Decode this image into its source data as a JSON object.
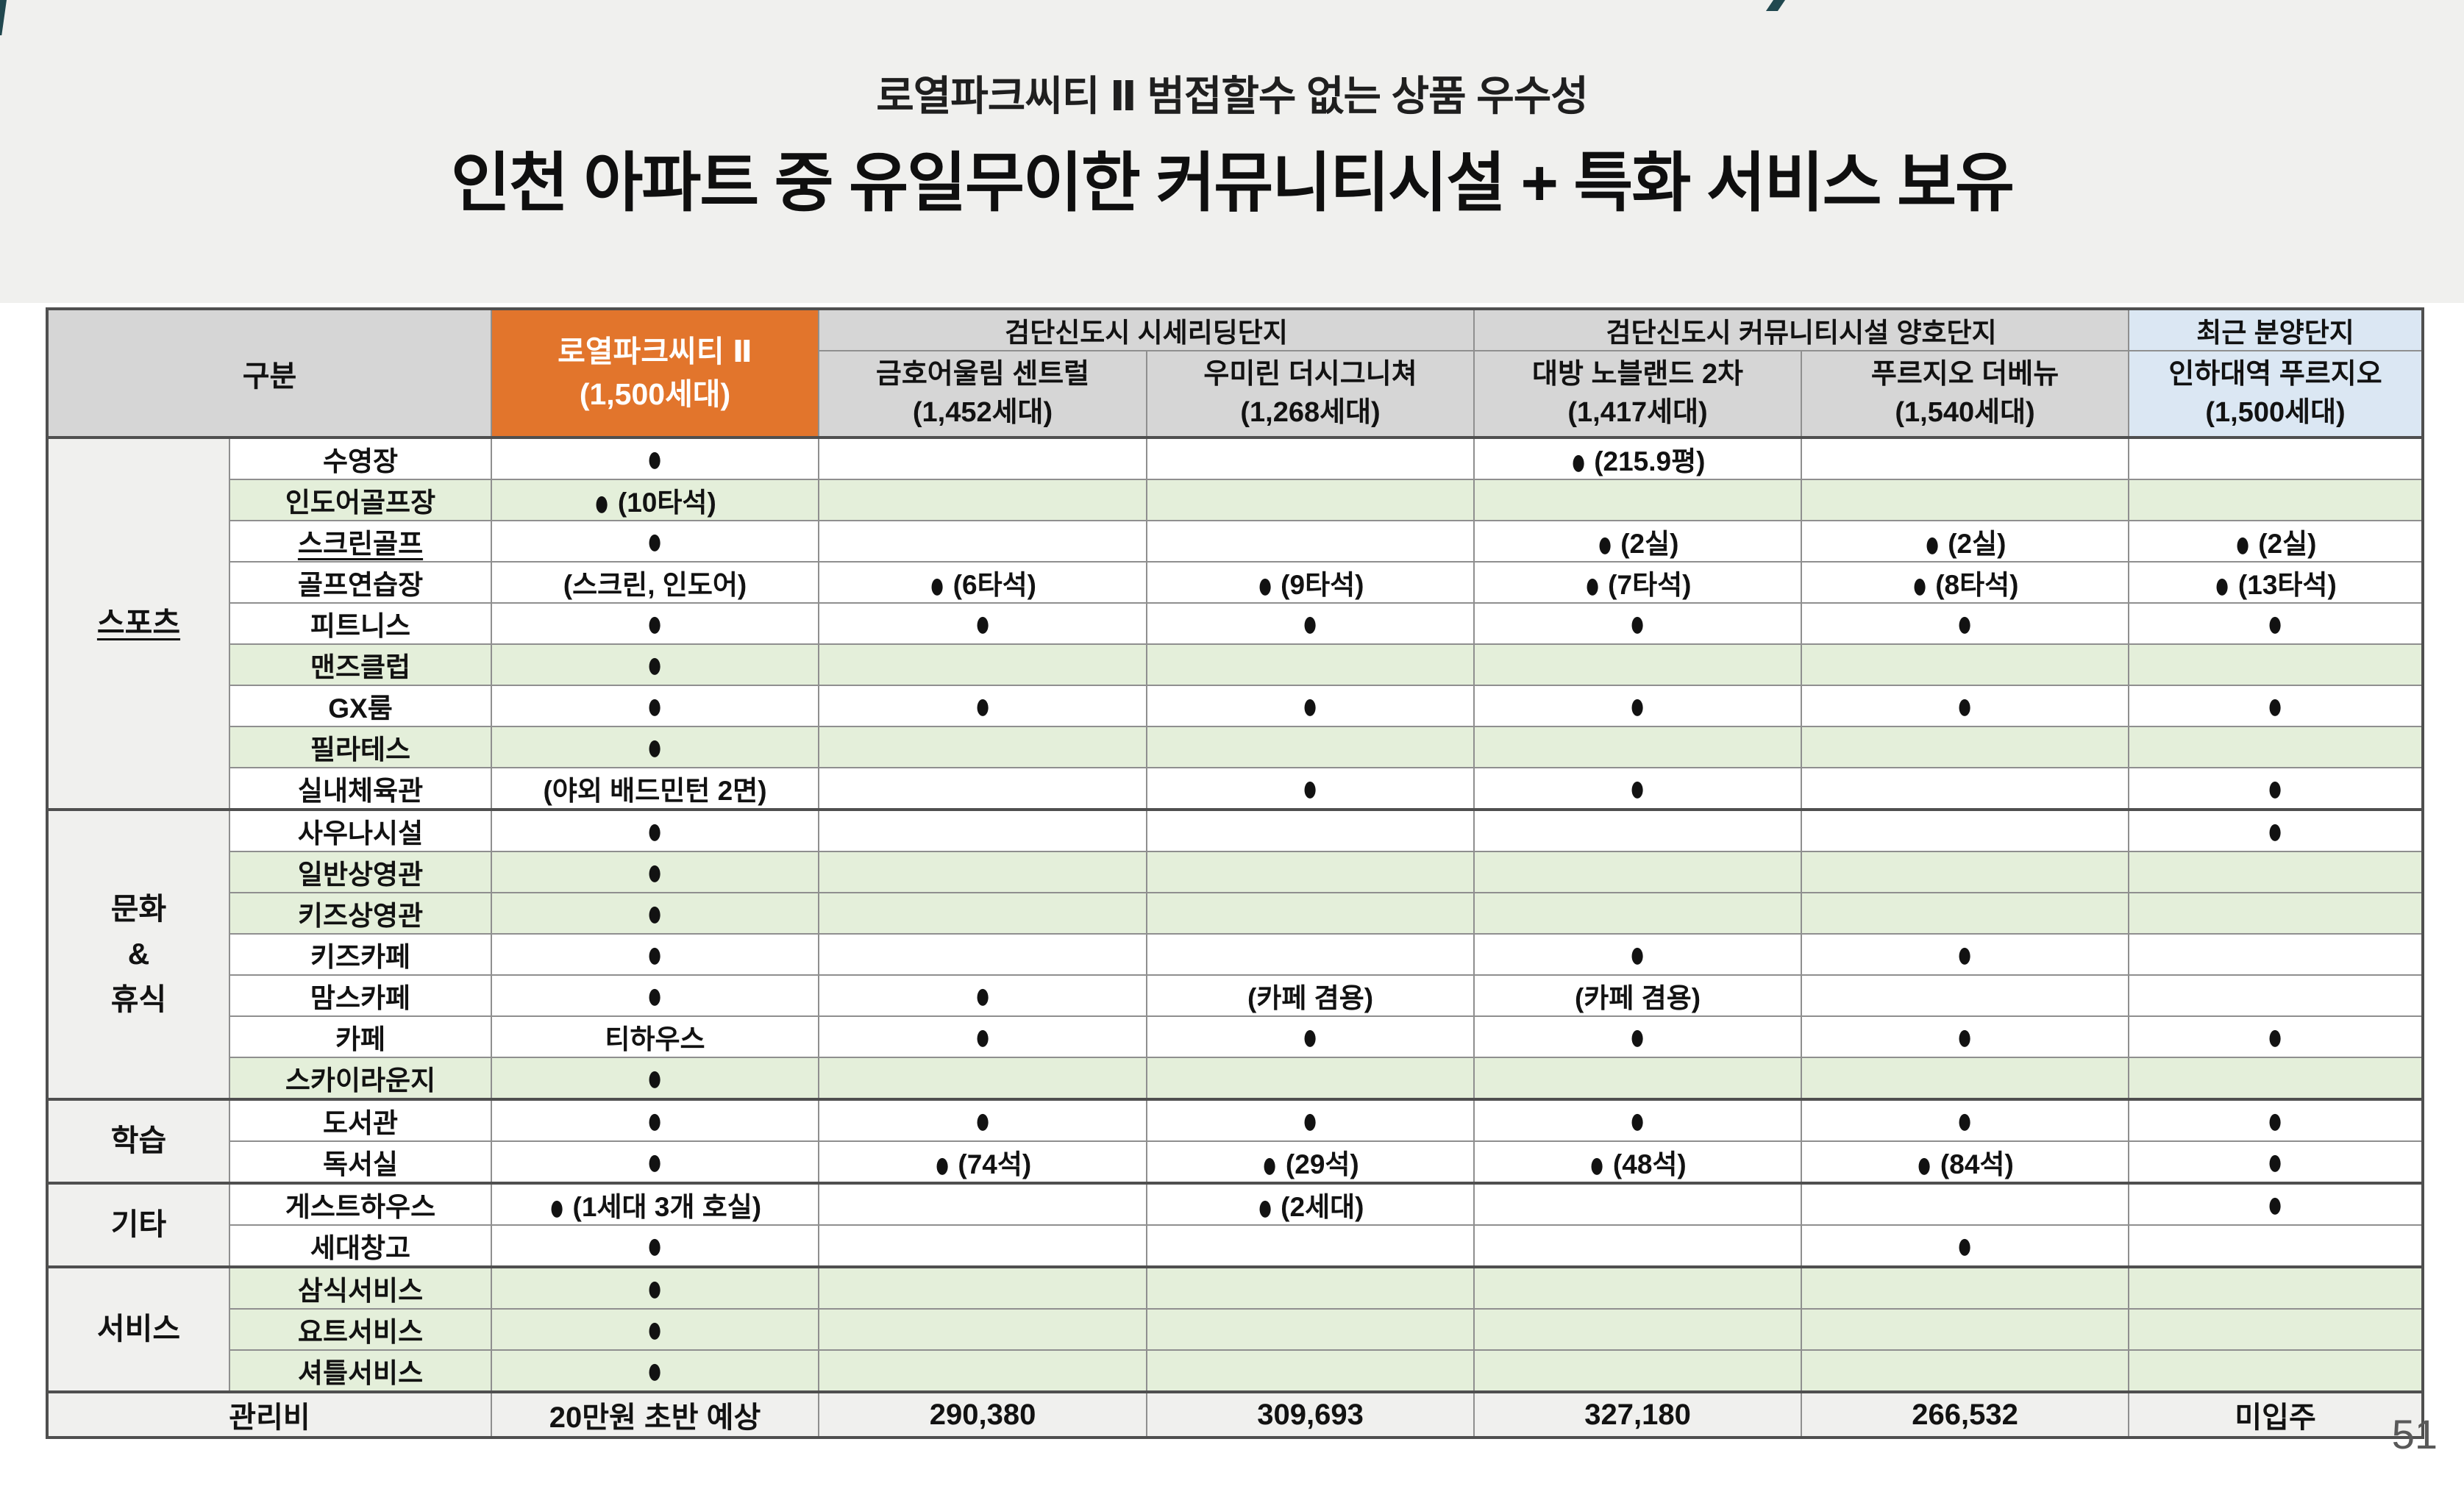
{
  "header": {
    "subtitle": "로열파크씨티 Ⅱ 범접할수 없는 상품 우수성",
    "title": "인천 아파트 중 유일무이한 커뮤니티시설 + 특화 서비스 보유"
  },
  "table": {
    "corner_label": "구분",
    "highlight_column": {
      "name": "로열파크씨티 Ⅱ",
      "units": "(1,500세대)"
    },
    "groups": [
      {
        "label": "검단신도시 시세리딩단지",
        "span": 2,
        "highlight": false
      },
      {
        "label": "검단신도시 커뮤니티시설 양호단지",
        "span": 2,
        "highlight": false
      },
      {
        "label": "최근 분양단지",
        "span": 1,
        "highlight": true
      }
    ],
    "columns": [
      {
        "name": "금호어울림 센트럴",
        "units": "(1,452세대)",
        "highlight": false
      },
      {
        "name": "우미린 더시그니쳐",
        "units": "(1,268세대)",
        "highlight": false
      },
      {
        "name": "대방 노블랜드 2차",
        "units": "(1,417세대)",
        "highlight": false
      },
      {
        "name": "푸르지오 더베뉴",
        "units": "(1,540세대)",
        "highlight": false
      },
      {
        "name": "인하대역 푸르지오",
        "units": "(1,500세대)",
        "highlight": true
      }
    ],
    "sections": [
      {
        "label_lines": [
          "스포츠"
        ],
        "underline": true,
        "rows": [
          {
            "label": "수영장",
            "green": false,
            "underline": false,
            "values": [
              "●",
              "",
              "",
              "● (215.9평)",
              "",
              ""
            ]
          },
          {
            "label": "인도어골프장",
            "green": true,
            "underline": false,
            "values": [
              "● (10타석)",
              "",
              "",
              "",
              "",
              ""
            ]
          },
          {
            "label": "스크린골프",
            "green": false,
            "underline": true,
            "values": [
              "●",
              "",
              "",
              "● (2실)",
              "● (2실)",
              "● (2실)"
            ]
          },
          {
            "label": "골프연습장",
            "green": false,
            "underline": false,
            "values": [
              "(스크린, 인도어)",
              "● (6타석)",
              "● (9타석)",
              "● (7타석)",
              "● (8타석)",
              "● (13타석)"
            ]
          },
          {
            "label": "피트니스",
            "green": false,
            "underline": false,
            "values": [
              "●",
              "●",
              "●",
              "●",
              "●",
              "●"
            ]
          },
          {
            "label": "맨즈클럽",
            "green": true,
            "underline": false,
            "values": [
              "●",
              "",
              "",
              "",
              "",
              ""
            ]
          },
          {
            "label": "GX룸",
            "green": false,
            "underline": false,
            "values": [
              "●",
              "●",
              "●",
              "●",
              "●",
              "●"
            ]
          },
          {
            "label": "필라테스",
            "green": true,
            "underline": false,
            "values": [
              "●",
              "",
              "",
              "",
              "",
              ""
            ]
          },
          {
            "label": "실내체육관",
            "green": false,
            "underline": false,
            "values": [
              "(야외 배드민턴 2면)",
              "",
              "●",
              "●",
              "",
              "●"
            ]
          }
        ]
      },
      {
        "label_lines": [
          "문화",
          "&",
          "휴식"
        ],
        "underline": false,
        "rows": [
          {
            "label": "사우나시설",
            "green": false,
            "underline": false,
            "values": [
              "●",
              "",
              "",
              "",
              "",
              "●"
            ]
          },
          {
            "label": "일반상영관",
            "green": true,
            "underline": false,
            "values": [
              "●",
              "",
              "",
              "",
              "",
              ""
            ]
          },
          {
            "label": "키즈상영관",
            "green": true,
            "underline": false,
            "values": [
              "●",
              "",
              "",
              "",
              "",
              ""
            ]
          },
          {
            "label": "키즈카페",
            "green": false,
            "underline": false,
            "values": [
              "●",
              "",
              "",
              "●",
              "●",
              ""
            ]
          },
          {
            "label": "맘스카페",
            "green": false,
            "underline": false,
            "values": [
              "●",
              "●",
              "(카페 겸용)",
              "(카페 겸용)",
              "",
              ""
            ]
          },
          {
            "label": "카페",
            "green": false,
            "underline": false,
            "values": [
              "티하우스",
              "●",
              "●",
              "●",
              "●",
              "●"
            ]
          },
          {
            "label": "스카이라운지",
            "green": true,
            "underline": false,
            "values": [
              "●",
              "",
              "",
              "",
              "",
              ""
            ]
          }
        ]
      },
      {
        "label_lines": [
          "학습"
        ],
        "underline": false,
        "rows": [
          {
            "label": "도서관",
            "green": false,
            "underline": false,
            "values": [
              "●",
              "●",
              "●",
              "●",
              "●",
              "●"
            ]
          },
          {
            "label": "독서실",
            "green": false,
            "underline": false,
            "values": [
              "●",
              "● (74석)",
              "● (29석)",
              "● (48석)",
              "● (84석)",
              "●"
            ]
          }
        ]
      },
      {
        "label_lines": [
          "기타"
        ],
        "underline": false,
        "rows": [
          {
            "label": "게스트하우스",
            "green": false,
            "underline": false,
            "values": [
              "● (1세대 3개 호실)",
              "",
              "● (2세대)",
              "",
              "",
              "●"
            ]
          },
          {
            "label": "세대창고",
            "green": false,
            "underline": false,
            "values": [
              "●",
              "",
              "",
              "",
              "●",
              ""
            ]
          }
        ]
      },
      {
        "label_lines": [
          "서비스"
        ],
        "underline": false,
        "rows": [
          {
            "label": "삼식서비스",
            "green": true,
            "underline": false,
            "values": [
              "●",
              "",
              "",
              "",
              "",
              ""
            ]
          },
          {
            "label": "요트서비스",
            "green": true,
            "underline": false,
            "values": [
              "●",
              "",
              "",
              "",
              "",
              ""
            ]
          },
          {
            "label": "셔틀서비스",
            "green": true,
            "underline": false,
            "values": [
              "●",
              "",
              "",
              "",
              "",
              ""
            ]
          }
        ]
      }
    ],
    "footer_row": {
      "label": "관리비",
      "values": [
        "20만원 초반 예상",
        "290,380",
        "309,693",
        "327,180",
        "266,532",
        "미입주"
      ]
    }
  },
  "footer": {
    "page_number": "51"
  },
  "colors": {
    "accent_orange": "#e2752c",
    "highlight_blue": "#dbe7f3",
    "row_green": "#e4efda",
    "header_gray": "#d6d6d6",
    "band_gray": "#f0f0ee",
    "deco_teal": "#21484f"
  }
}
